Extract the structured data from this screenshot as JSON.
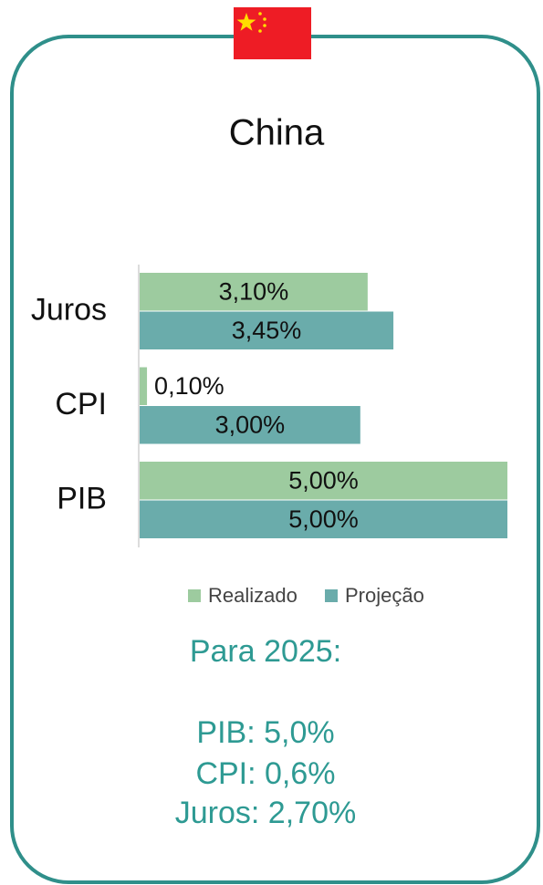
{
  "chart_data": {
    "type": "bar",
    "orientation": "horizontal",
    "title": "China",
    "categories": [
      "Juros",
      "CPI",
      "PIB"
    ],
    "series": [
      {
        "name": "Realizado",
        "color": "#9dcb9f",
        "values": [
          3.1,
          0.1,
          5.0
        ],
        "value_labels": [
          "3,10%",
          "0,10%",
          "5,00%"
        ]
      },
      {
        "name": "Projeção",
        "color": "#6aacab",
        "values": [
          3.45,
          3.0,
          5.0
        ],
        "value_labels": [
          "3,45%",
          "3,00%",
          "5,00%"
        ]
      }
    ],
    "legend": "bottom",
    "annotations": [
      "Para 2025:",
      "PIB: 5,0%",
      "CPI: 0,6%",
      "Juros: 2,70%"
    ]
  }
}
